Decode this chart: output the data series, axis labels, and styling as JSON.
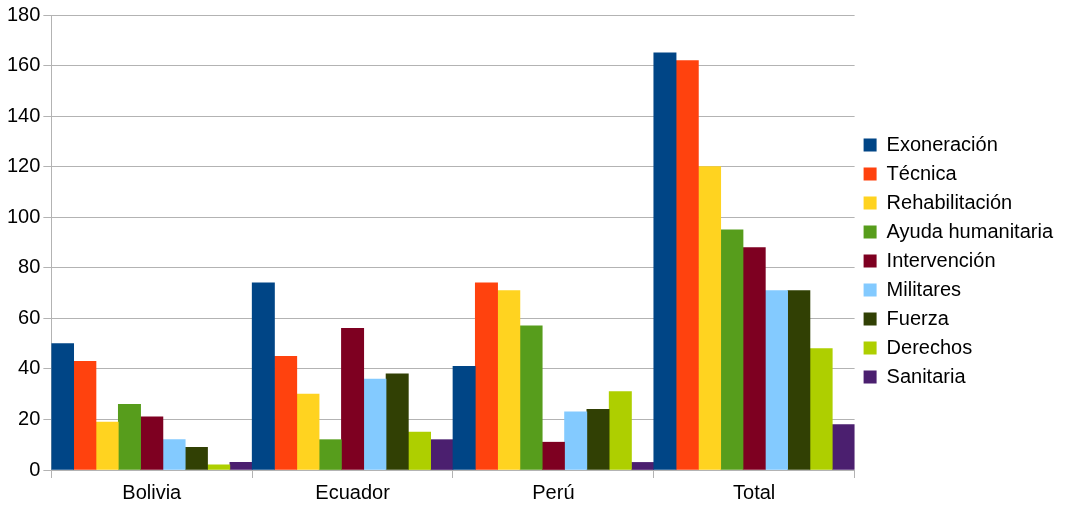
{
  "chart_data": {
    "type": "bar",
    "categories": [
      "Bolivia",
      "Ecuador",
      "Perú",
      "Total"
    ],
    "series": [
      {
        "name": "Exoneración",
        "color": "#004586",
        "values": [
          50,
          74,
          41,
          165
        ]
      },
      {
        "name": "Técnica",
        "color": "#ff420e",
        "values": [
          43,
          45,
          74,
          162
        ]
      },
      {
        "name": "Rehabilitación",
        "color": "#ffd320",
        "values": [
          19,
          30,
          71,
          120
        ]
      },
      {
        "name": "Ayuda humanitaria",
        "color": "#579d1c",
        "values": [
          26,
          12,
          57,
          95
        ]
      },
      {
        "name": "Intervención",
        "color": "#7e0021",
        "values": [
          21,
          56,
          11,
          88
        ]
      },
      {
        "name": "Militares",
        "color": "#83caff",
        "values": [
          12,
          36,
          23,
          71
        ]
      },
      {
        "name": "Fuerza",
        "color": "#314004",
        "values": [
          9,
          38,
          24,
          71
        ]
      },
      {
        "name": "Derechos",
        "color": "#aecf00",
        "values": [
          2,
          15,
          31,
          48
        ]
      },
      {
        "name": "Sanitaria",
        "color": "#4b1f6f",
        "values": [
          3,
          12,
          3,
          18
        ]
      }
    ],
    "ylim": [
      0,
      180
    ],
    "yticks": [
      0,
      20,
      40,
      60,
      80,
      100,
      120,
      140,
      160,
      180
    ],
    "grid": "y",
    "legend": "right"
  }
}
